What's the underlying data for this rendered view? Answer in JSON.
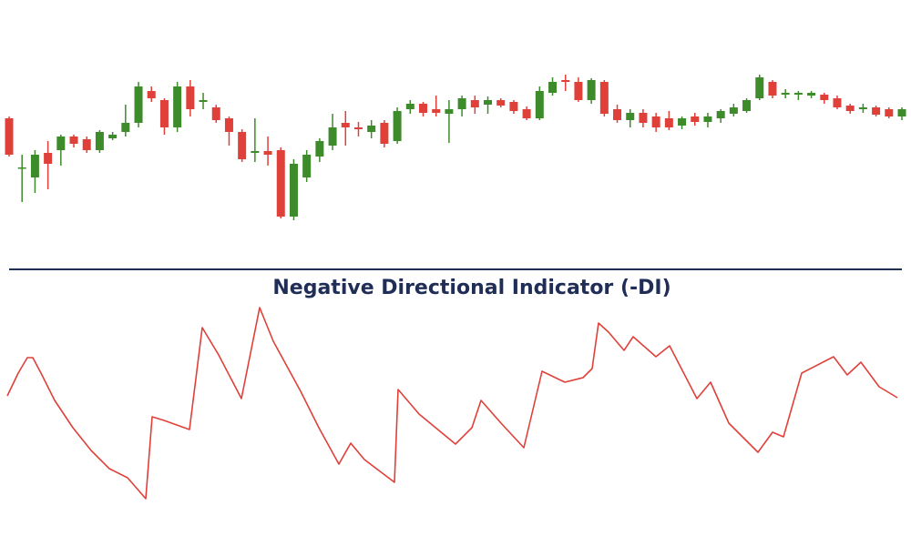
{
  "chart_data": [
    {
      "type": "candlestick",
      "up_color": "#3d8b2b",
      "down_color": "#e0403a",
      "ylim": [
        50,
        230
      ],
      "open": [
        170,
        115,
        105,
        132,
        135,
        150,
        147,
        135,
        148,
        155,
        165,
        200,
        190,
        160,
        205,
        188,
        182,
        170,
        155,
        132,
        134,
        135,
        62,
        105,
        128,
        140,
        165,
        160,
        155,
        165,
        145,
        180,
        186,
        180,
        175,
        180,
        190,
        185,
        190,
        188,
        180,
        170,
        198,
        212,
        210,
        190,
        210,
        180,
        168,
        176,
        172,
        170,
        162,
        172,
        166,
        170,
        175,
        178,
        192,
        210,
        196,
        196,
        195,
        196,
        192,
        184,
        180,
        182,
        180,
        172
      ],
      "high": [
        172,
        130,
        135,
        145,
        152,
        152,
        150,
        157,
        155,
        185,
        210,
        205,
        192,
        210,
        212,
        198,
        185,
        172,
        158,
        170,
        150,
        138,
        125,
        135,
        148,
        175,
        178,
        166,
        168,
        168,
        182,
        190,
        188,
        195,
        190,
        195,
        195,
        194,
        192,
        190,
        183,
        205,
        215,
        218,
        215,
        214,
        212,
        185,
        180,
        180,
        176,
        178,
        172,
        176,
        176,
        180,
        186,
        192,
        218,
        212,
        202,
        200,
        200,
        198,
        195,
        186,
        186,
        184,
        182,
        182
      ],
      "low": [
        128,
        78,
        88,
        92,
        118,
        138,
        132,
        132,
        146,
        150,
        160,
        188,
        152,
        155,
        172,
        180,
        165,
        140,
        122,
        122,
        118,
        60,
        58,
        100,
        122,
        135,
        140,
        150,
        148,
        138,
        142,
        175,
        172,
        172,
        143,
        172,
        175,
        175,
        182,
        175,
        168,
        168,
        195,
        200,
        188,
        186,
        172,
        165,
        160,
        160,
        155,
        157,
        158,
        162,
        160,
        165,
        172,
        176,
        190,
        192,
        192,
        190,
        192,
        186,
        180,
        175,
        176,
        172,
        170,
        168
      ],
      "close": [
        130,
        116,
        130,
        120,
        150,
        142,
        135,
        155,
        152,
        165,
        205,
        192,
        160,
        205,
        180,
        190,
        168,
        155,
        125,
        134,
        130,
        62,
        120,
        130,
        145,
        160,
        160,
        158,
        162,
        142,
        178,
        186,
        176,
        176,
        180,
        192,
        182,
        190,
        184,
        178,
        170,
        200,
        210,
        210,
        190,
        212,
        175,
        168,
        176,
        165,
        160,
        160,
        170,
        166,
        172,
        178,
        182,
        190,
        215,
        195,
        198,
        198,
        198,
        190,
        182,
        178,
        182,
        174,
        172,
        180
      ]
    },
    {
      "type": "line",
      "title": "Negative Directional Indicator (-DI)",
      "color": "#e0403a",
      "xlim": [
        0,
        100
      ],
      "ylim": [
        40,
        270
      ],
      "x": [
        0.8,
        2,
        3,
        3.6,
        4.5,
        6,
        8,
        10,
        12,
        14,
        16,
        16.7,
        18,
        20.8,
        22.2,
        24,
        26.5,
        28.5,
        30,
        33,
        35,
        37.2,
        38.5,
        40,
        43.3,
        43.7,
        46,
        50,
        51.8,
        52.8,
        55,
        57.5,
        59.5,
        62,
        64,
        65,
        65.7,
        66.8,
        68.5,
        69.5,
        72,
        73.5,
        76.5,
        78,
        80,
        83.2,
        84.8,
        86,
        88,
        91.5,
        93,
        94.5,
        96.5,
        98.5
      ],
      "values": [
        165,
        190,
        207,
        207,
        190,
        160,
        130,
        105,
        85,
        75,
        52,
        142,
        138,
        128,
        240,
        210,
        162,
        262,
        225,
        170,
        130,
        90,
        113,
        95,
        70,
        172,
        145,
        112,
        130,
        160,
        135,
        108,
        192,
        180,
        185,
        195,
        245,
        235,
        215,
        230,
        208,
        220,
        162,
        180,
        135,
        103,
        125,
        120,
        190,
        208,
        188,
        202,
        175,
        163
      ]
    }
  ]
}
